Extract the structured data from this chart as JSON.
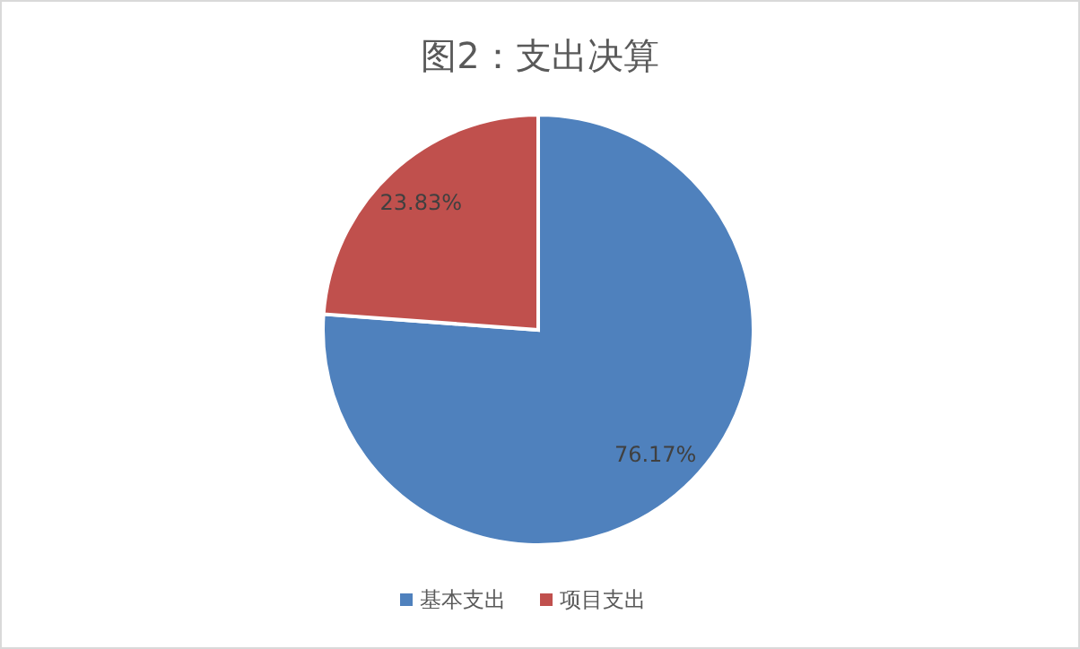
{
  "chart_data": {
    "type": "pie",
    "title": "图2：支出决算",
    "categories": [
      "基本支出",
      "项目支出"
    ],
    "values": [
      76.17,
      23.83
    ],
    "colors": [
      "#4f81bd",
      "#c0504d"
    ],
    "value_labels": [
      "76.17%",
      "23.83%"
    ],
    "legend": "bottom"
  }
}
